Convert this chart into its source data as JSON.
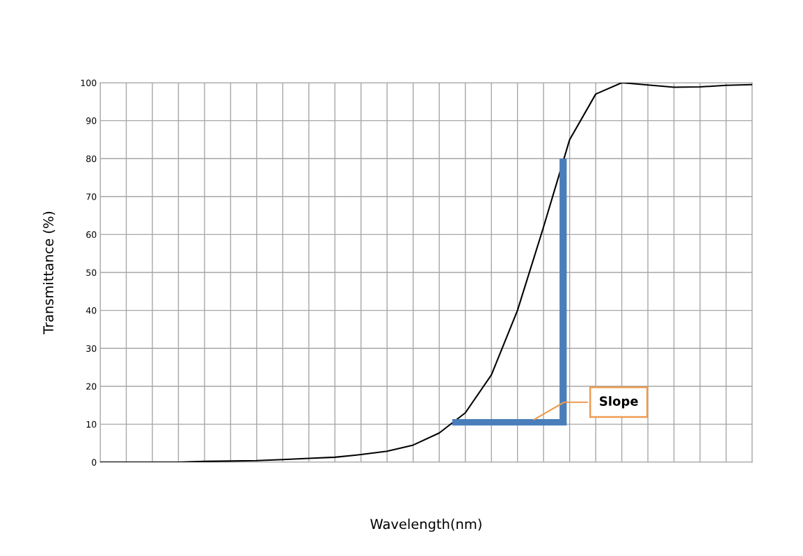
{
  "chart_data": {
    "type": "line",
    "xlabel": "Wavelength(nm)",
    "ylabel": "Transmittance (%)",
    "categories": [
      null,
      null,
      null,
      null,
      null,
      null,
      null,
      null,
      null,
      null,
      null,
      null,
      null,
      null,
      null,
      null,
      null,
      null,
      null,
      null,
      null,
      null,
      null,
      null,
      null,
      null
    ],
    "ylim": [
      0,
      100
    ],
    "yticks": [
      0,
      10,
      20,
      30,
      40,
      50,
      60,
      70,
      80,
      90,
      100
    ],
    "grid": true,
    "legend": false,
    "marker": "none",
    "line_style": "solid",
    "series": [
      {
        "color": "#000000",
        "values": [
          0,
          0,
          0,
          0,
          0.2,
          0.3,
          0.4,
          0.7,
          1.0,
          1.3,
          2.0,
          2.9,
          4.5,
          7.7,
          13,
          23,
          40,
          62,
          85,
          97,
          100,
          99.4,
          98.8,
          98.9,
          99.3,
          99.5
        ]
      }
    ],
    "annotations": [
      "Slope"
    ]
  }
}
